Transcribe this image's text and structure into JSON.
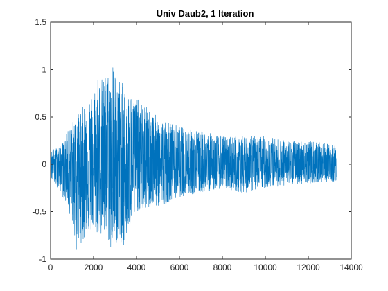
{
  "chart_data": {
    "type": "line",
    "title": "Univ Daub2, 1 Iteration",
    "xlabel": "",
    "ylabel": "",
    "xlim": [
      0,
      14000
    ],
    "ylim": [
      -1,
      1.5
    ],
    "xticks": [
      0,
      2000,
      4000,
      6000,
      8000,
      10000,
      12000,
      14000
    ],
    "yticks": [
      -1,
      -0.5,
      0,
      0.5,
      1,
      1.5
    ],
    "grid": false,
    "legend": "none",
    "series_color": "#0072BD",
    "series": [
      {
        "x_range": [
          1,
          13300
        ],
        "envelope": [
          {
            "x": 0,
            "ymax": 0.15,
            "ymin": -0.15
          },
          {
            "x": 500,
            "ymax": 0.2,
            "ymin": -0.3
          },
          {
            "x": 1000,
            "ymax": 0.45,
            "ymin": -0.6
          },
          {
            "x": 1200,
            "ymax": 0.5,
            "ymin": -0.88
          },
          {
            "x": 2000,
            "ymax": 0.8,
            "ymin": -0.7
          },
          {
            "x": 2200,
            "ymax": 0.88,
            "ymin": -0.75
          },
          {
            "x": 2900,
            "ymax": 1.02,
            "ymin": -0.85
          },
          {
            "x": 3500,
            "ymax": 0.8,
            "ymin": -0.82
          },
          {
            "x": 4000,
            "ymax": 0.7,
            "ymin": -0.5
          },
          {
            "x": 5000,
            "ymax": 0.5,
            "ymin": -0.45
          },
          {
            "x": 6000,
            "ymax": 0.4,
            "ymin": -0.35
          },
          {
            "x": 7000,
            "ymax": 0.35,
            "ymin": -0.3
          },
          {
            "x": 8000,
            "ymax": 0.3,
            "ymin": -0.25
          },
          {
            "x": 9000,
            "ymax": 0.3,
            "ymin": -0.3
          },
          {
            "x": 10000,
            "ymax": 0.3,
            "ymin": -0.25
          },
          {
            "x": 11000,
            "ymax": 0.25,
            "ymin": -0.22
          },
          {
            "x": 12000,
            "ymax": 0.25,
            "ymin": -0.2
          },
          {
            "x": 13300,
            "ymax": 0.2,
            "ymin": -0.18
          }
        ],
        "peaks": [
          {
            "x": 2900,
            "y": 1.02
          },
          {
            "x": 2200,
            "y": 0.89
          },
          {
            "x": 1200,
            "y": -0.9
          },
          {
            "x": 2800,
            "y": -0.87
          },
          {
            "x": 3400,
            "y": -0.85
          }
        ]
      }
    ]
  }
}
